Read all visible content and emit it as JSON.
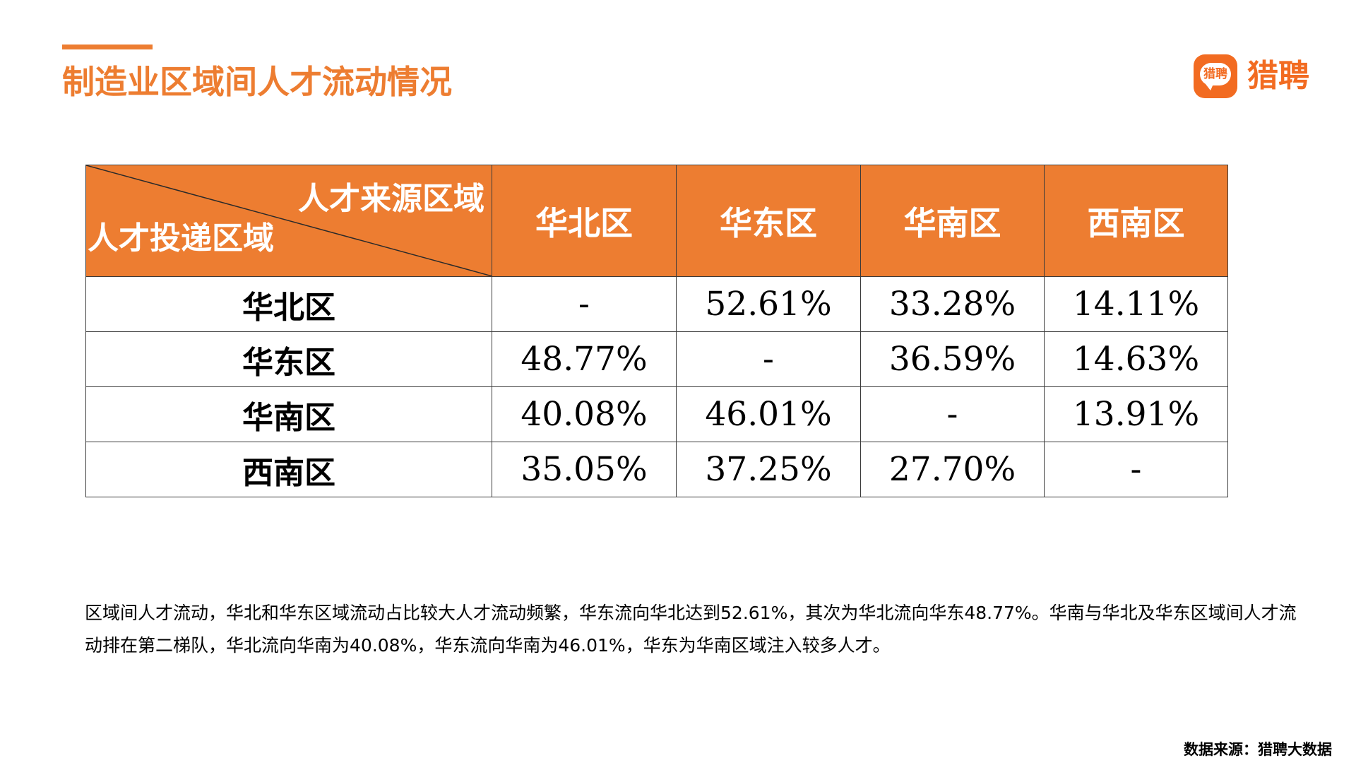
{
  "title": "制造业区域间人才流动情况",
  "logo": {
    "badge_text": "猎聘",
    "wordmark": "猎聘",
    "brand_color": "#F26B21"
  },
  "accent_color": "#ED7D31",
  "table": {
    "corner_top_label": "人才来源区域",
    "corner_bottom_label": "人才投递区域",
    "columns": [
      "华北区",
      "华东区",
      "华南区",
      "西南区"
    ],
    "rows": [
      {
        "label": "华北区",
        "cells": [
          "-",
          "52.61%",
          "33.28%",
          "14.11%"
        ]
      },
      {
        "label": "华东区",
        "cells": [
          "48.77%",
          "-",
          "36.59%",
          "14.63%"
        ]
      },
      {
        "label": "华南区",
        "cells": [
          "40.08%",
          "46.01%",
          "-",
          "13.91%"
        ]
      },
      {
        "label": "西南区",
        "cells": [
          "35.05%",
          "37.25%",
          "27.70%",
          "-"
        ]
      }
    ]
  },
  "summary": "区域间人才流动，华北和华东区域流动占比较大人才流动频繁，华东流向华北达到52.61%，其次为华北流向华东48.77%。华南与华北及华东区域间人才流动排在第二梯队，华北流向华南为40.08%，华东流向华南为46.01%，华东为华南区域注入较多人才。",
  "source": "数据来源：猎聘大数据"
}
